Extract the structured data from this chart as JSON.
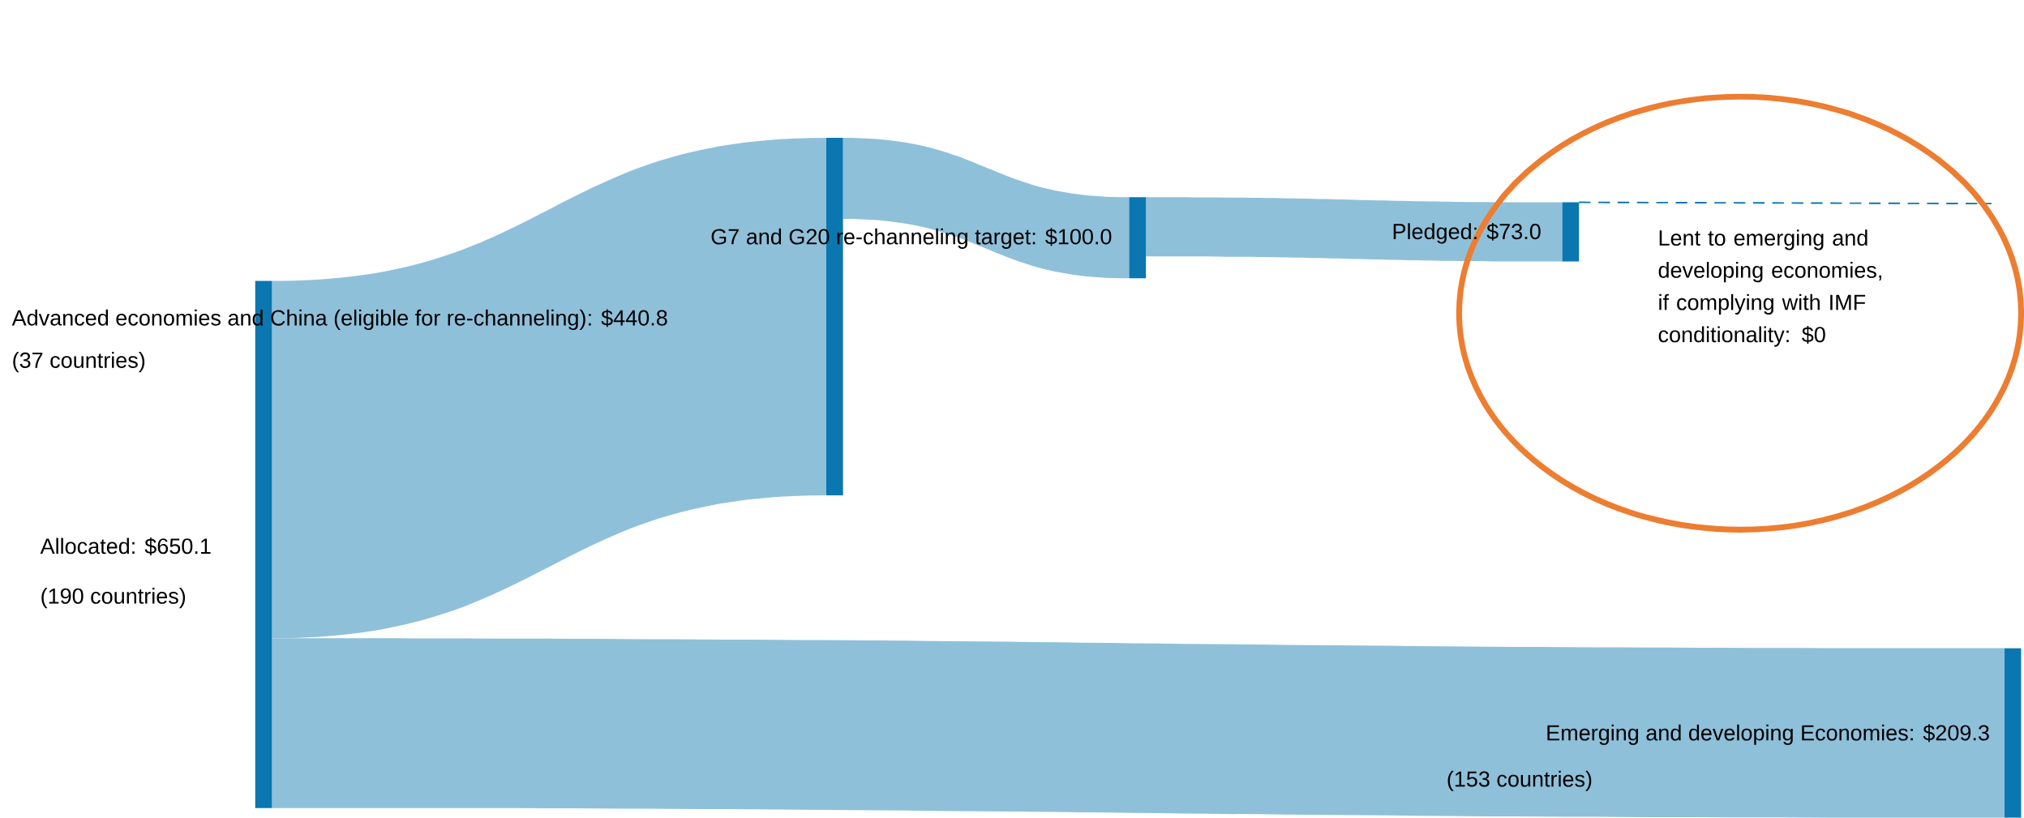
{
  "chart_data": {
    "type": "other",
    "categories": [
      "Allocated",
      "Advanced economies and China (eligible for re-channeling)",
      "G7 and G20 re-channeling target",
      "Pledged",
      "Lent to emerging and developing economies, if complying with IMF conditionality",
      "Emerging and developing Economies"
    ],
    "values": [
      650.1,
      440.8,
      100.0,
      73.0,
      0,
      209.3
    ],
    "value_labels": [
      ": $650.1",
      ": $440.8",
      ": $100.0",
      ": $73.0",
      ": $0",
      ": $209.3"
    ],
    "color": "#0a77b0",
    "colors": [
      "#0a77b0",
      "#8fc0da",
      "#8fc0da",
      "#8fc0da",
      "#0a77b0",
      "#8fc0da"
    ],
    "annotations": [
      "(190 countries)",
      "(37 countries)",
      "(153 countries)"
    ]
  }
}
